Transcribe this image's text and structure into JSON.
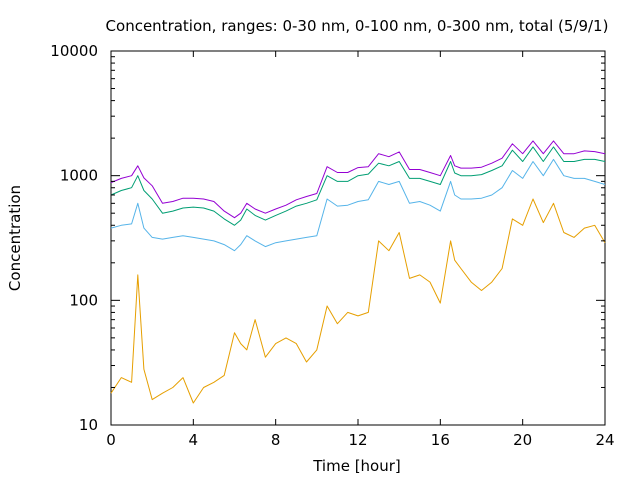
{
  "chart_data": {
    "type": "line",
    "title": "Concentration, ranges: 0-30 nm, 0-100 nm, 0-300 nm, total (5/9/1)",
    "xlabel": "Time [hour]",
    "ylabel": "Concentration",
    "xlim": [
      0,
      24
    ],
    "ylim": [
      10,
      10000
    ],
    "yscale": "log",
    "grid": false,
    "legend": "none",
    "x_ticks": [
      "0",
      "4",
      "8",
      "12",
      "16",
      "20",
      "24"
    ],
    "y_ticks": [
      "10",
      "100",
      "1000",
      "10000"
    ],
    "x": [
      0,
      0.5,
      1.0,
      1.3,
      1.6,
      2.0,
      2.5,
      3.0,
      3.5,
      4.0,
      4.5,
      5.0,
      5.5,
      6.0,
      6.3,
      6.6,
      7.0,
      7.5,
      8.0,
      8.5,
      9.0,
      9.5,
      10.0,
      10.5,
      11.0,
      11.5,
      12.0,
      12.5,
      13.0,
      13.5,
      14.0,
      14.5,
      15.0,
      15.5,
      16.0,
      16.5,
      16.7,
      17.0,
      17.5,
      18.0,
      18.5,
      19.0,
      19.5,
      20.0,
      20.5,
      21.0,
      21.5,
      22.0,
      22.5,
      23.0,
      23.5,
      24.0
    ],
    "series": [
      {
        "color": "#e69f00",
        "values": [
          18,
          24,
          22,
          160,
          28,
          16,
          18,
          20,
          24,
          15,
          20,
          22,
          25,
          55,
          45,
          40,
          70,
          35,
          45,
          50,
          45,
          32,
          40,
          90,
          65,
          80,
          75,
          80,
          300,
          250,
          350,
          150,
          160,
          140,
          95,
          300,
          210,
          180,
          140,
          120,
          140,
          180,
          450,
          400,
          650,
          420,
          600,
          350,
          320,
          380,
          400,
          290
        ]
      },
      {
        "color": "#56b4e9",
        "values": [
          380,
          400,
          410,
          600,
          380,
          320,
          310,
          320,
          330,
          320,
          310,
          300,
          280,
          250,
          280,
          330,
          300,
          270,
          290,
          300,
          310,
          320,
          330,
          650,
          570,
          580,
          620,
          640,
          900,
          850,
          900,
          600,
          620,
          580,
          520,
          900,
          700,
          650,
          650,
          660,
          700,
          800,
          1100,
          950,
          1300,
          1000,
          1350,
          1000,
          950,
          950,
          900,
          850
        ]
      },
      {
        "color": "#009e73",
        "values": [
          700,
          760,
          800,
          1000,
          760,
          650,
          500,
          520,
          550,
          560,
          550,
          520,
          450,
          400,
          440,
          540,
          480,
          440,
          480,
          520,
          570,
          600,
          640,
          1000,
          900,
          900,
          1000,
          1030,
          1260,
          1200,
          1300,
          950,
          950,
          900,
          850,
          1300,
          1050,
          1000,
          1000,
          1020,
          1100,
          1200,
          1600,
          1300,
          1700,
          1300,
          1700,
          1300,
          1300,
          1350,
          1350,
          1300
        ]
      },
      {
        "color": "#9400d3",
        "values": [
          880,
          950,
          1000,
          1200,
          960,
          830,
          600,
          620,
          660,
          660,
          650,
          620,
          520,
          460,
          500,
          600,
          540,
          500,
          540,
          580,
          640,
          680,
          720,
          1180,
          1060,
          1060,
          1160,
          1180,
          1500,
          1420,
          1550,
          1120,
          1120,
          1060,
          1000,
          1450,
          1200,
          1150,
          1150,
          1170,
          1260,
          1380,
          1800,
          1500,
          1900,
          1500,
          1900,
          1500,
          1500,
          1580,
          1560,
          1500
        ]
      }
    ]
  }
}
